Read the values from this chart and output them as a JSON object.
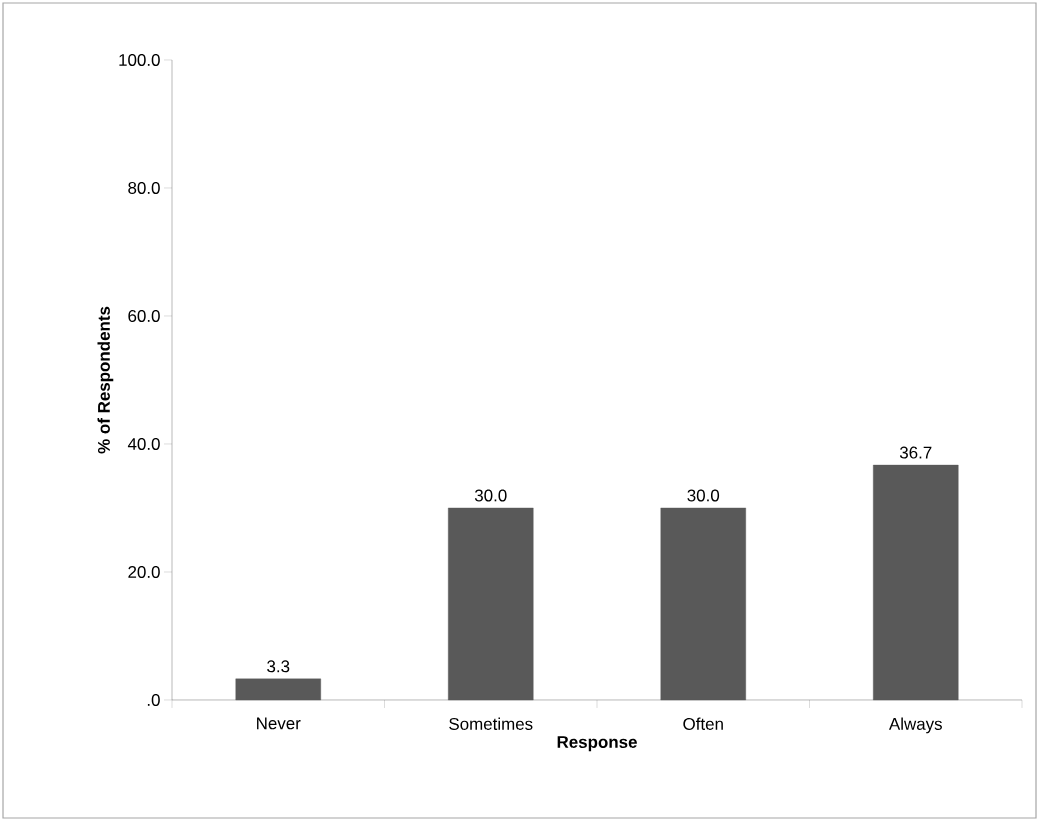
{
  "chart_data": {
    "type": "bar",
    "xlabel": "Response",
    "ylabel": "% of Respondents",
    "categories": [
      "Never",
      "Sometimes",
      "Often",
      "Always"
    ],
    "values": [
      3.3,
      30.0,
      30.0,
      36.7
    ],
    "value_labels": [
      "3.3",
      "30.0",
      "30.0",
      "36.7"
    ],
    "color": "#595959",
    "ylim": [
      0,
      100
    ],
    "yticks": [
      {
        "value": 0,
        "label": ".0"
      },
      {
        "value": 20,
        "label": "20.0"
      },
      {
        "value": 40,
        "label": "40.0"
      },
      {
        "value": 60,
        "label": "60.0"
      },
      {
        "value": 80,
        "label": "80.0"
      },
      {
        "value": 100,
        "label": "100.0"
      }
    ]
  }
}
